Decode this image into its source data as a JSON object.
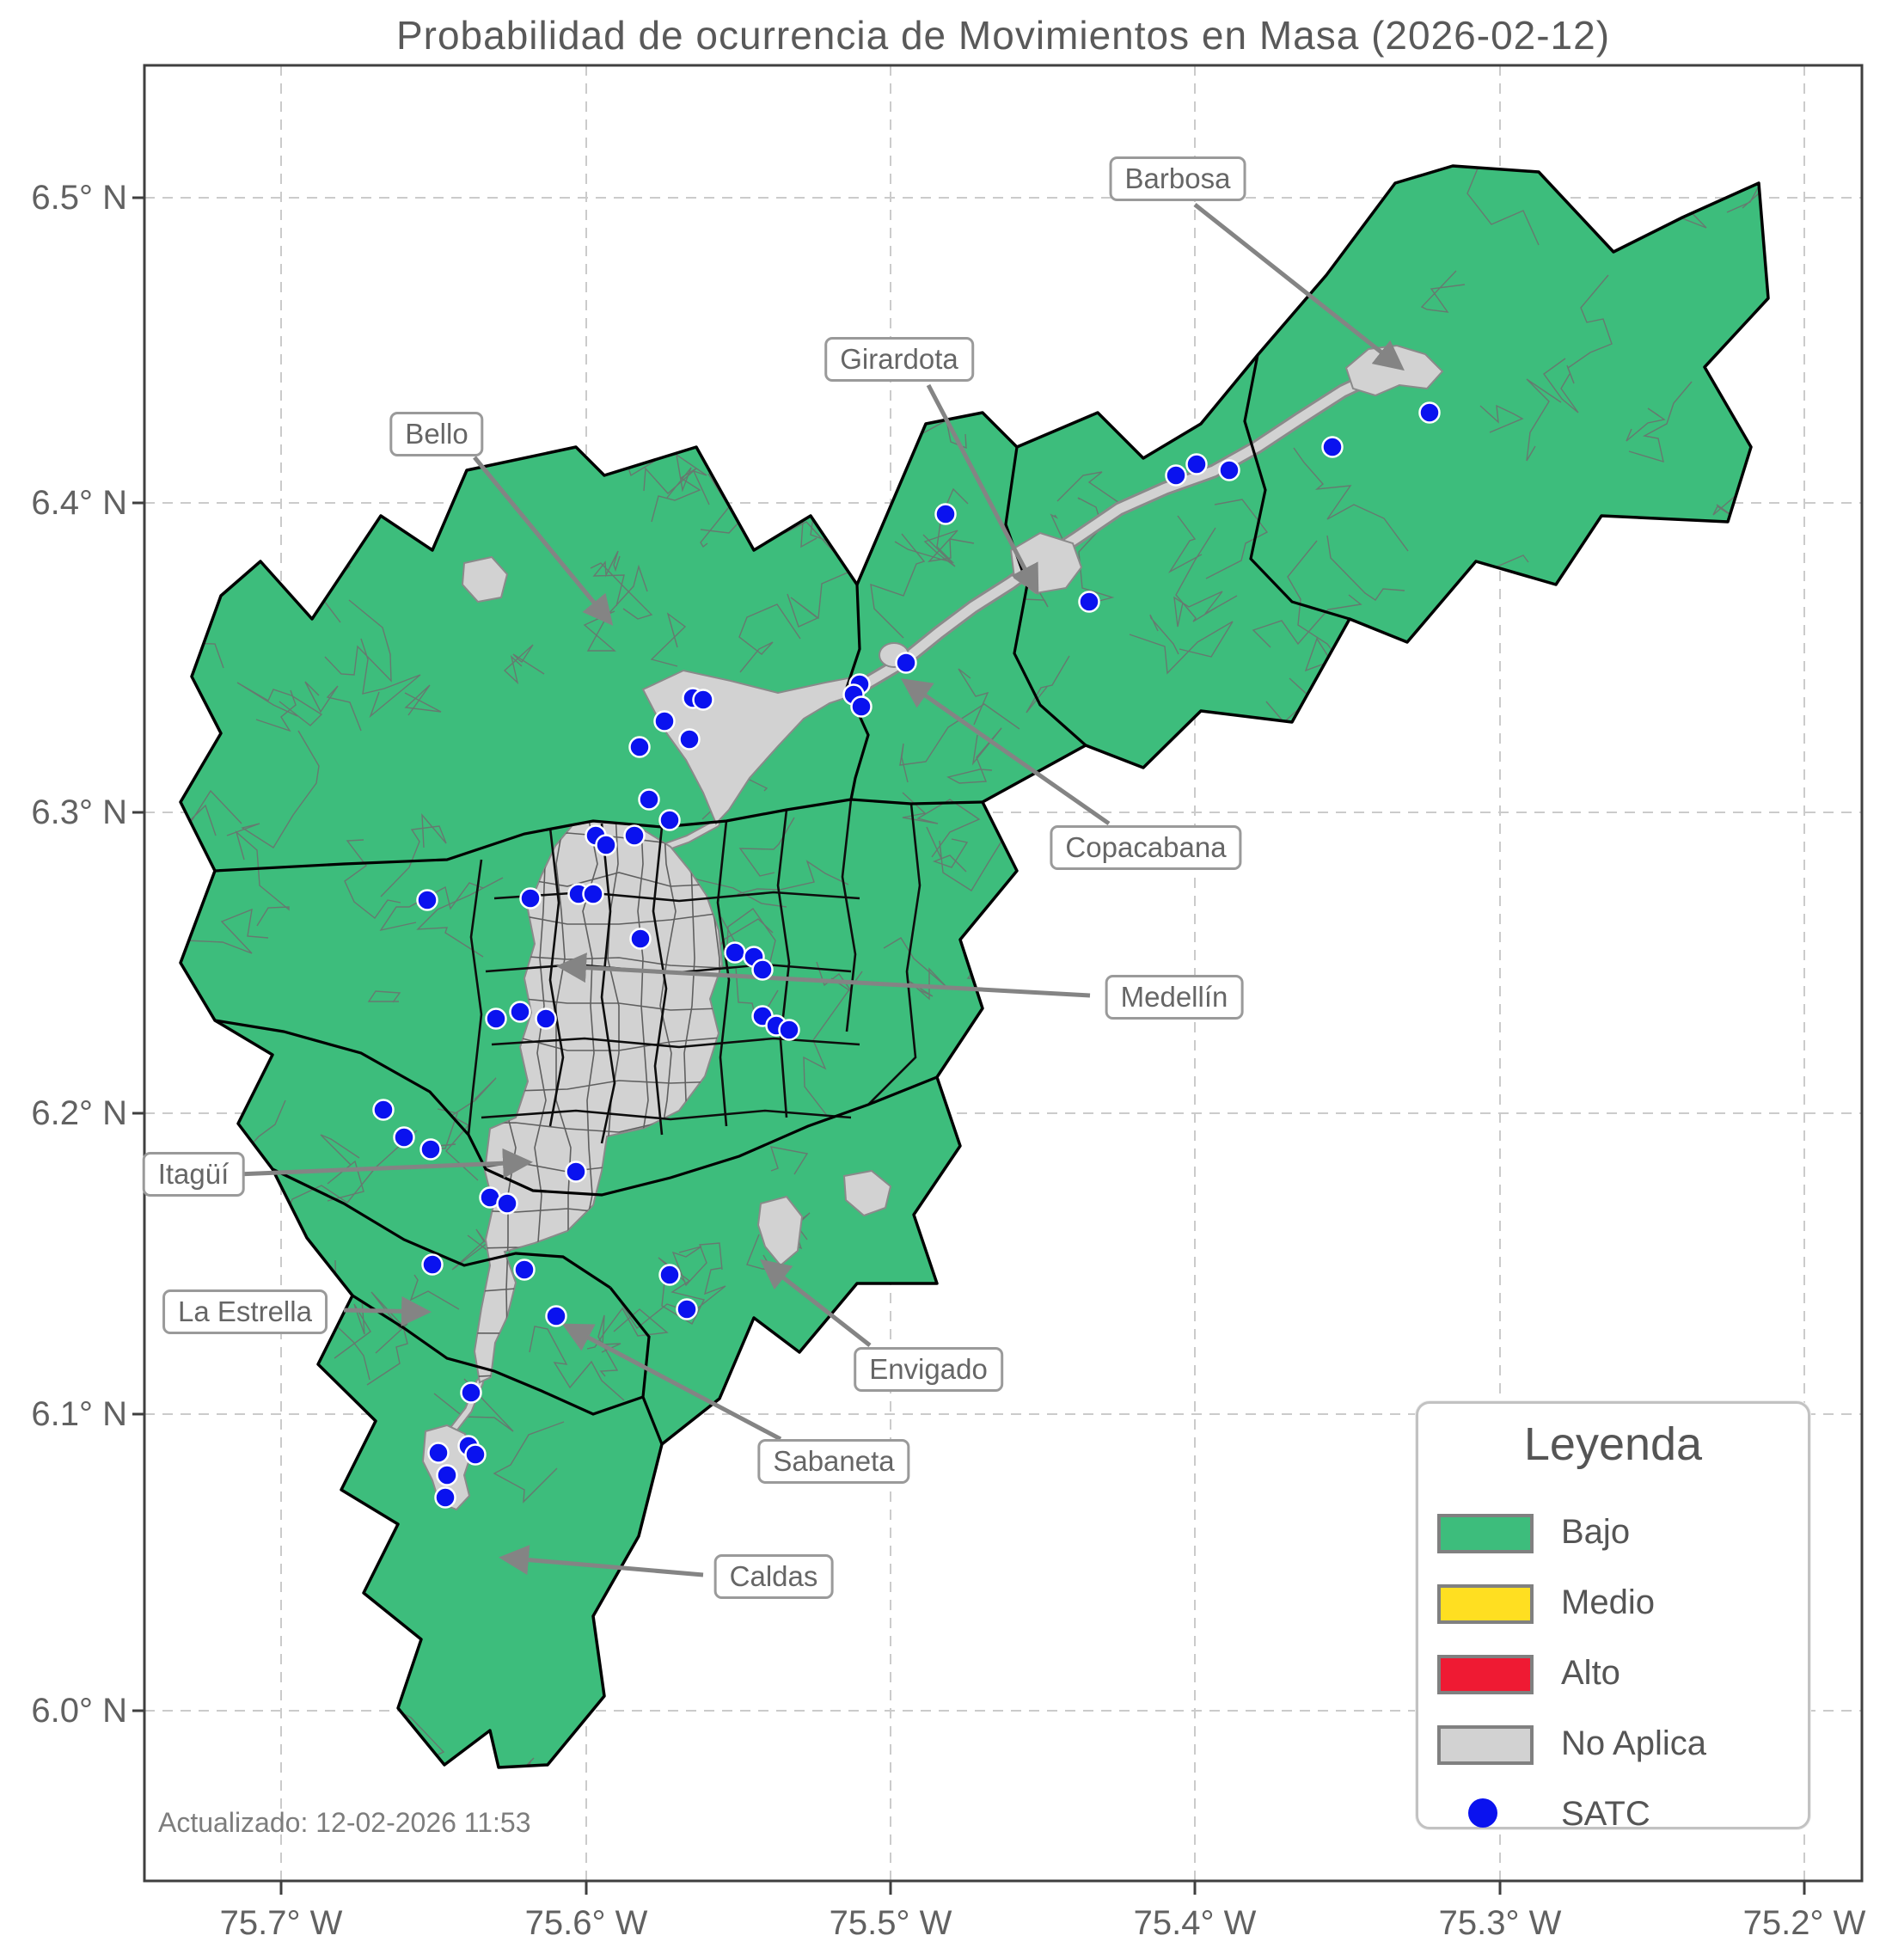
{
  "title": "Probabilidad de ocurrencia de Movimientos en Masa (2026-02-12)",
  "updated": "Actualizado: 12-02-2026 11:53",
  "axes": {
    "x_ticks": [
      "75.7° W",
      "75.6° W",
      "75.5° W",
      "75.4° W",
      "75.3° W",
      "75.2° W"
    ],
    "y_ticks": [
      "6.5° N",
      "6.4° N",
      "6.3° N",
      "6.2° N",
      "6.1° N",
      "6.0° N"
    ]
  },
  "legend": {
    "title": "Leyenda",
    "items": [
      {
        "label": "Bajo",
        "color": "#3dbd7c",
        "marker": "patch"
      },
      {
        "label": "Medio",
        "color": "#ffdf21",
        "marker": "patch"
      },
      {
        "label": "Alto",
        "color": "#ef1a33",
        "marker": "patch"
      },
      {
        "label": "No Aplica",
        "color": "#d2d2d2",
        "marker": "patch"
      },
      {
        "label": "SATC",
        "color": "#0a12ef",
        "marker": "point"
      }
    ]
  },
  "annotations": [
    {
      "id": "barbosa",
      "label": "Barbosa"
    },
    {
      "id": "girardota",
      "label": "Girardota"
    },
    {
      "id": "bello",
      "label": "Bello"
    },
    {
      "id": "copacabana",
      "label": "Copacabana"
    },
    {
      "id": "medellin",
      "label": "Medellín"
    },
    {
      "id": "itagui",
      "label": "Itagüí"
    },
    {
      "id": "la_estrella",
      "label": "La Estrella"
    },
    {
      "id": "envigado",
      "label": "Envigado"
    },
    {
      "id": "sabaneta",
      "label": "Sabaneta"
    },
    {
      "id": "caldas",
      "label": "Caldas"
    }
  ],
  "map": {
    "risk_level_shown": "Bajo",
    "satc_points": [
      [
        1663,
        480
      ],
      [
        1550,
        520
      ],
      [
        1430,
        547
      ],
      [
        1392,
        540
      ],
      [
        1368,
        553
      ],
      [
        1100,
        598
      ],
      [
        1267,
        700
      ],
      [
        1054,
        771
      ],
      [
        1000,
        796
      ],
      [
        993,
        808
      ],
      [
        1002,
        822
      ],
      [
        806,
        812
      ],
      [
        818,
        814
      ],
      [
        773,
        839
      ],
      [
        744,
        869
      ],
      [
        802,
        860
      ],
      [
        755,
        930
      ],
      [
        779,
        954
      ],
      [
        693,
        972
      ],
      [
        705,
        983
      ],
      [
        738,
        972
      ],
      [
        617,
        1045
      ],
      [
        673,
        1040
      ],
      [
        690,
        1040
      ],
      [
        497,
        1047
      ],
      [
        745,
        1092
      ],
      [
        855,
        1108
      ],
      [
        877,
        1113
      ],
      [
        887,
        1128
      ],
      [
        605,
        1177
      ],
      [
        577,
        1185
      ],
      [
        635,
        1185
      ],
      [
        887,
        1182
      ],
      [
        903,
        1193
      ],
      [
        918,
        1198
      ],
      [
        446,
        1291
      ],
      [
        470,
        1323
      ],
      [
        501,
        1337
      ],
      [
        670,
        1363
      ],
      [
        570,
        1393
      ],
      [
        590,
        1400
      ],
      [
        610,
        1477
      ],
      [
        503,
        1471
      ],
      [
        779,
        1483
      ],
      [
        799,
        1523
      ],
      [
        647,
        1531
      ],
      [
        548,
        1620
      ],
      [
        510,
        1690
      ],
      [
        545,
        1682
      ],
      [
        553,
        1692
      ],
      [
        520,
        1716
      ],
      [
        518,
        1742
      ]
    ]
  },
  "colors": {
    "bajo": "#3dbd7c",
    "medio": "#ffdf21",
    "alto": "#ef1a33",
    "no_aplica": "#d2d2d2",
    "satc": "#0a12ef",
    "urban_border": "#8a8a8a",
    "boundary": "#000000",
    "vereda": "#6e6e6e",
    "arrow": "#848484",
    "grid": "#cbcbcb",
    "spine": "#3f3f3f"
  }
}
